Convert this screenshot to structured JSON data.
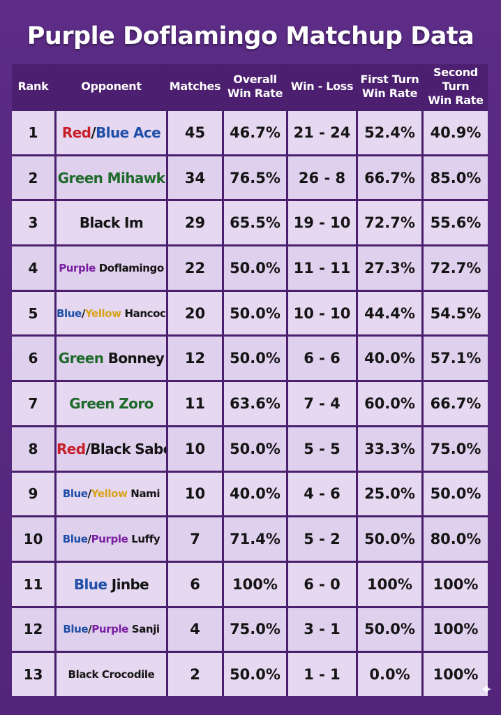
{
  "title": "Purple Doflamingo Matchup Data",
  "chart_data": {
    "type": "table",
    "title": "Purple Doflamingo Matchup Data",
    "columns": [
      "Rank",
      "Opponent",
      "Matches",
      "Overall Win Rate",
      "Win - Loss",
      "First Turn Win Rate",
      "Second Turn Win Rate"
    ],
    "header_lines": [
      [
        "Rank"
      ],
      [
        "Opponent"
      ],
      [
        "Matches"
      ],
      [
        "Overall",
        "Win Rate"
      ],
      [
        "Win - Loss"
      ],
      [
        "First Turn",
        "Win Rate"
      ],
      [
        "Second",
        "Turn",
        "Win Rate"
      ]
    ],
    "rows": [
      {
        "rank": "1",
        "opponent": "Red/Blue Ace",
        "parts": [
          {
            "text": "Red",
            "color": "red"
          },
          {
            "text": "/",
            "color": "sep"
          },
          {
            "text": "Blue Ace",
            "color": "blue"
          }
        ],
        "small": false,
        "matches": "45",
        "overall": "46.7%",
        "wl": "21 - 24",
        "first": "52.4%",
        "second": "40.9%"
      },
      {
        "rank": "2",
        "opponent": "Green Mihawk",
        "parts": [
          {
            "text": "Green Mihawk",
            "color": "green"
          }
        ],
        "small": false,
        "matches": "34",
        "overall": "76.5%",
        "wl": "26 - 8",
        "first": "66.7%",
        "second": "85.0%"
      },
      {
        "rank": "3",
        "opponent": "Black Im",
        "parts": [
          {
            "text": "Black Im",
            "color": "black"
          }
        ],
        "small": false,
        "matches": "29",
        "overall": "65.5%",
        "wl": "19 - 10",
        "first": "72.7%",
        "second": "55.6%"
      },
      {
        "rank": "4",
        "opponent": "Purple Doflamingo",
        "parts": [
          {
            "text": "Purple",
            "color": "purple"
          },
          {
            "text": " Doflamingo",
            "color": "black"
          }
        ],
        "small": true,
        "matches": "22",
        "overall": "50.0%",
        "wl": "11 - 11",
        "first": "27.3%",
        "second": "72.7%"
      },
      {
        "rank": "5",
        "opponent": "Blue/Yellow Hancock",
        "parts": [
          {
            "text": "Blue",
            "color": "blue"
          },
          {
            "text": "/",
            "color": "sep"
          },
          {
            "text": "Yellow",
            "color": "yellow"
          },
          {
            "text": " Hancock",
            "color": "black"
          }
        ],
        "small": true,
        "matches": "20",
        "overall": "50.0%",
        "wl": "10 - 10",
        "first": "44.4%",
        "second": "54.5%"
      },
      {
        "rank": "6",
        "opponent": "Green Bonney",
        "parts": [
          {
            "text": "Green",
            "color": "green"
          },
          {
            "text": " Bonney",
            "color": "black"
          }
        ],
        "small": false,
        "matches": "12",
        "overall": "50.0%",
        "wl": "6 - 6",
        "first": "40.0%",
        "second": "57.1%"
      },
      {
        "rank": "7",
        "opponent": "Green Zoro",
        "parts": [
          {
            "text": "Green Zoro",
            "color": "green"
          }
        ],
        "small": false,
        "matches": "11",
        "overall": "63.6%",
        "wl": "7 - 4",
        "first": "60.0%",
        "second": "66.7%"
      },
      {
        "rank": "8",
        "opponent": "Red/Black Sabo",
        "parts": [
          {
            "text": "Red",
            "color": "red"
          },
          {
            "text": "/Black Sabo",
            "color": "black"
          }
        ],
        "small": false,
        "matches": "10",
        "overall": "50.0%",
        "wl": "5 - 5",
        "first": "33.3%",
        "second": "75.0%"
      },
      {
        "rank": "9",
        "opponent": "Blue/Yellow Nami",
        "parts": [
          {
            "text": "Blue",
            "color": "blue"
          },
          {
            "text": "/",
            "color": "sep"
          },
          {
            "text": "Yellow",
            "color": "yellow"
          },
          {
            "text": " Nami",
            "color": "black"
          }
        ],
        "small": true,
        "matches": "10",
        "overall": "40.0%",
        "wl": "4 - 6",
        "first": "25.0%",
        "second": "50.0%"
      },
      {
        "rank": "10",
        "opponent": "Blue/Purple Luffy",
        "parts": [
          {
            "text": "Blue",
            "color": "blue"
          },
          {
            "text": "/",
            "color": "sep"
          },
          {
            "text": "Purple",
            "color": "purple"
          },
          {
            "text": " Luffy",
            "color": "black"
          }
        ],
        "small": true,
        "matches": "7",
        "overall": "71.4%",
        "wl": "5 - 2",
        "first": "50.0%",
        "second": "80.0%"
      },
      {
        "rank": "11",
        "opponent": "Blue Jinbe",
        "parts": [
          {
            "text": "Blue",
            "color": "blue"
          },
          {
            "text": " Jinbe",
            "color": "black"
          }
        ],
        "small": false,
        "matches": "6",
        "overall": "100%",
        "wl": "6 - 0",
        "first": "100%",
        "second": "100%"
      },
      {
        "rank": "12",
        "opponent": "Blue/Purple Sanji",
        "parts": [
          {
            "text": "Blue",
            "color": "blue"
          },
          {
            "text": "/",
            "color": "sep"
          },
          {
            "text": "Purple",
            "color": "purple"
          },
          {
            "text": " Sanji",
            "color": "black"
          }
        ],
        "small": true,
        "matches": "4",
        "overall": "75.0%",
        "wl": "3 - 1",
        "first": "50.0%",
        "second": "100%"
      },
      {
        "rank": "13",
        "opponent": "Black Crocodile",
        "parts": [
          {
            "text": "Black Crocodile",
            "color": "black"
          }
        ],
        "small": true,
        "matches": "2",
        "overall": "50.0%",
        "wl": "1 - 1",
        "first": "0.0%",
        "second": "100%"
      }
    ]
  },
  "colors": {
    "background": "#5a2a82",
    "header": "#4c1f70",
    "cell": "#ece0f6",
    "red": "#c81e2a",
    "blue": "#1f4fa8",
    "green": "#1e6a2a",
    "purple": "#7a1fa2",
    "yellow": "#d9a21a",
    "black": "#141414"
  },
  "icons": {
    "corner": "sparkle-icon"
  }
}
